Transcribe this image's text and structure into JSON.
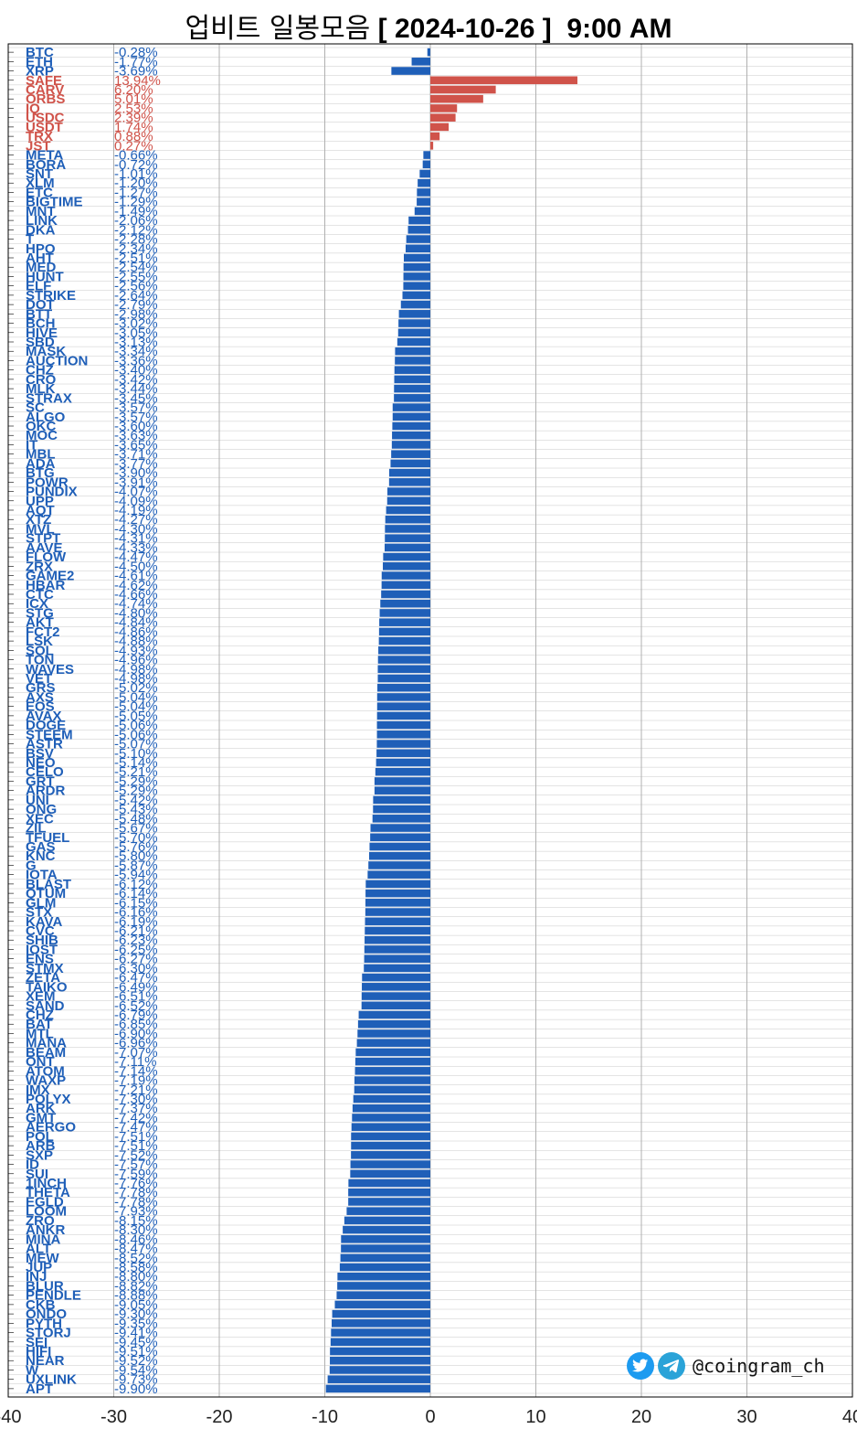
{
  "title": {
    "hangul": "업비트 일봉모음",
    "rest": " [ 2024-10-26 ]  9:00 AM"
  },
  "watermark": {
    "handle": "@coingram_ch",
    "icons": [
      "twitter-bird-icon",
      "telegram-plane-icon"
    ]
  },
  "colors": {
    "negative": "#1f5fb8",
    "positive": "#d0534a",
    "grid": "#c8c8c8"
  },
  "chart_data": {
    "type": "bar",
    "orientation": "horizontal",
    "title": "업비트 일봉모음 [ 2024-10-26 ]  9:00 AM",
    "xlim": [
      -40,
      40
    ],
    "xticks": [
      "-40",
      "-30",
      "-20",
      "-10",
      "0",
      "10",
      "20",
      "30",
      "40"
    ],
    "grid": true,
    "rows": [
      {
        "name": "BTC",
        "change": -0.28,
        "label": "-0.28%"
      },
      {
        "name": "ETH",
        "change": -1.77,
        "label": "-1.77%"
      },
      {
        "name": "XRP",
        "change": -3.69,
        "label": "-3.69%"
      },
      {
        "name": "SAFE",
        "change": 13.94,
        "label": "13.94%"
      },
      {
        "name": "CARV",
        "change": 6.2,
        "label": "6.20%"
      },
      {
        "name": "ORBS",
        "change": 5.01,
        "label": "5.01%"
      },
      {
        "name": "IQ",
        "change": 2.53,
        "label": "2.53%"
      },
      {
        "name": "USDC",
        "change": 2.39,
        "label": "2.39%"
      },
      {
        "name": "USDT",
        "change": 1.74,
        "label": "1.74%"
      },
      {
        "name": "TRX",
        "change": 0.88,
        "label": "0.88%"
      },
      {
        "name": "JST",
        "change": 0.27,
        "label": "0.27%"
      },
      {
        "name": "META",
        "change": -0.66,
        "label": "-0.66%"
      },
      {
        "name": "BORA",
        "change": -0.72,
        "label": "-0.72%"
      },
      {
        "name": "SNT",
        "change": -1.01,
        "label": "-1.01%"
      },
      {
        "name": "XLM",
        "change": -1.2,
        "label": "-1.20%"
      },
      {
        "name": "ETC",
        "change": -1.27,
        "label": "-1.27%"
      },
      {
        "name": "BIGTIME",
        "change": -1.29,
        "label": "-1.29%"
      },
      {
        "name": "MNT",
        "change": -1.49,
        "label": "-1.49%"
      },
      {
        "name": "LINK",
        "change": -2.06,
        "label": "-2.06%"
      },
      {
        "name": "DKA",
        "change": -2.12,
        "label": "-2.12%"
      },
      {
        "name": "T",
        "change": -2.28,
        "label": "-2.28%"
      },
      {
        "name": "HPO",
        "change": -2.34,
        "label": "-2.34%"
      },
      {
        "name": "AHT",
        "change": -2.51,
        "label": "-2.51%"
      },
      {
        "name": "MED",
        "change": -2.54,
        "label": "-2.54%"
      },
      {
        "name": "HUNT",
        "change": -2.55,
        "label": "-2.55%"
      },
      {
        "name": "ELF",
        "change": -2.56,
        "label": "-2.56%"
      },
      {
        "name": "STRIKE",
        "change": -2.64,
        "label": "-2.64%"
      },
      {
        "name": "DOT",
        "change": -2.79,
        "label": "-2.79%"
      },
      {
        "name": "BTT",
        "change": -2.98,
        "label": "-2.98%"
      },
      {
        "name": "BCH",
        "change": -3.02,
        "label": "-3.02%"
      },
      {
        "name": "HIVE",
        "change": -3.05,
        "label": "-3.05%"
      },
      {
        "name": "SBD",
        "change": -3.13,
        "label": "-3.13%"
      },
      {
        "name": "MASK",
        "change": -3.34,
        "label": "-3.34%"
      },
      {
        "name": "AUCTION",
        "change": -3.36,
        "label": "-3.36%"
      },
      {
        "name": "CHZ",
        "change": -3.4,
        "label": "-3.40%"
      },
      {
        "name": "CRO",
        "change": -3.42,
        "label": "-3.42%"
      },
      {
        "name": "MLK",
        "change": -3.44,
        "label": "-3.44%"
      },
      {
        "name": "STRAX",
        "change": -3.45,
        "label": "-3.45%"
      },
      {
        "name": "SC",
        "change": -3.57,
        "label": "-3.57%"
      },
      {
        "name": "ALGO",
        "change": -3.57,
        "label": "-3.57%"
      },
      {
        "name": "OKC",
        "change": -3.6,
        "label": "-3.60%"
      },
      {
        "name": "MOC",
        "change": -3.63,
        "label": "-3.63%"
      },
      {
        "name": "IT",
        "change": -3.65,
        "label": "-3.65%"
      },
      {
        "name": "MBL",
        "change": -3.71,
        "label": "-3.71%"
      },
      {
        "name": "ADA",
        "change": -3.77,
        "label": "-3.77%"
      },
      {
        "name": "BTG",
        "change": -3.9,
        "label": "-3.90%"
      },
      {
        "name": "POWR",
        "change": -3.91,
        "label": "-3.91%"
      },
      {
        "name": "PUNDIX",
        "change": -4.07,
        "label": "-4.07%"
      },
      {
        "name": "UPP",
        "change": -4.09,
        "label": "-4.09%"
      },
      {
        "name": "AQT",
        "change": -4.19,
        "label": "-4.19%"
      },
      {
        "name": "XTZ",
        "change": -4.27,
        "label": "-4.27%"
      },
      {
        "name": "MVL",
        "change": -4.3,
        "label": "-4.30%"
      },
      {
        "name": "STPT",
        "change": -4.31,
        "label": "-4.31%"
      },
      {
        "name": "AAVE",
        "change": -4.33,
        "label": "-4.33%"
      },
      {
        "name": "FLOW",
        "change": -4.47,
        "label": "-4.47%"
      },
      {
        "name": "ZRX",
        "change": -4.5,
        "label": "-4.50%"
      },
      {
        "name": "GAME2",
        "change": -4.61,
        "label": "-4.61%"
      },
      {
        "name": "HBAR",
        "change": -4.62,
        "label": "-4.62%"
      },
      {
        "name": "CTC",
        "change": -4.66,
        "label": "-4.66%"
      },
      {
        "name": "ICX",
        "change": -4.74,
        "label": "-4.74%"
      },
      {
        "name": "STG",
        "change": -4.8,
        "label": "-4.80%"
      },
      {
        "name": "AKT",
        "change": -4.84,
        "label": "-4.84%"
      },
      {
        "name": "FCT2",
        "change": -4.86,
        "label": "-4.86%"
      },
      {
        "name": "LSK",
        "change": -4.88,
        "label": "-4.88%"
      },
      {
        "name": "SOL",
        "change": -4.93,
        "label": "-4.93%"
      },
      {
        "name": "TON",
        "change": -4.96,
        "label": "-4.96%"
      },
      {
        "name": "WAVES",
        "change": -4.98,
        "label": "-4.98%"
      },
      {
        "name": "VET",
        "change": -4.98,
        "label": "-4.98%"
      },
      {
        "name": "GRS",
        "change": -5.02,
        "label": "-5.02%"
      },
      {
        "name": "AXS",
        "change": -5.04,
        "label": "-5.04%"
      },
      {
        "name": "EOS",
        "change": -5.04,
        "label": "-5.04%"
      },
      {
        "name": "AVAX",
        "change": -5.05,
        "label": "-5.05%"
      },
      {
        "name": "DOGE",
        "change": -5.06,
        "label": "-5.06%"
      },
      {
        "name": "STEEM",
        "change": -5.06,
        "label": "-5.06%"
      },
      {
        "name": "ASTR",
        "change": -5.07,
        "label": "-5.07%"
      },
      {
        "name": "BSV",
        "change": -5.1,
        "label": "-5.10%"
      },
      {
        "name": "NEO",
        "change": -5.14,
        "label": "-5.14%"
      },
      {
        "name": "CELO",
        "change": -5.21,
        "label": "-5.21%"
      },
      {
        "name": "GRT",
        "change": -5.29,
        "label": "-5.29%"
      },
      {
        "name": "ARDR",
        "change": -5.29,
        "label": "-5.29%"
      },
      {
        "name": "UNI",
        "change": -5.42,
        "label": "-5.42%"
      },
      {
        "name": "ONG",
        "change": -5.43,
        "label": "-5.43%"
      },
      {
        "name": "XEC",
        "change": -5.48,
        "label": "-5.48%"
      },
      {
        "name": "ZIL",
        "change": -5.67,
        "label": "-5.67%"
      },
      {
        "name": "TFUEL",
        "change": -5.7,
        "label": "-5.70%"
      },
      {
        "name": "GAS",
        "change": -5.76,
        "label": "-5.76%"
      },
      {
        "name": "KNC",
        "change": -5.8,
        "label": "-5.80%"
      },
      {
        "name": "G",
        "change": -5.87,
        "label": "-5.87%"
      },
      {
        "name": "IOTA",
        "change": -5.94,
        "label": "-5.94%"
      },
      {
        "name": "BLAST",
        "change": -6.12,
        "label": "-6.12%"
      },
      {
        "name": "QTUM",
        "change": -6.14,
        "label": "-6.14%"
      },
      {
        "name": "GLM",
        "change": -6.15,
        "label": "-6.15%"
      },
      {
        "name": "STX",
        "change": -6.16,
        "label": "-6.16%"
      },
      {
        "name": "KAVA",
        "change": -6.19,
        "label": "-6.19%"
      },
      {
        "name": "CVC",
        "change": -6.21,
        "label": "-6.21%"
      },
      {
        "name": "SHIB",
        "change": -6.23,
        "label": "-6.23%"
      },
      {
        "name": "IOST",
        "change": -6.25,
        "label": "-6.25%"
      },
      {
        "name": "ENS",
        "change": -6.27,
        "label": "-6.27%"
      },
      {
        "name": "STMX",
        "change": -6.3,
        "label": "-6.30%"
      },
      {
        "name": "ZETA",
        "change": -6.47,
        "label": "-6.47%"
      },
      {
        "name": "TAIKO",
        "change": -6.49,
        "label": "-6.49%"
      },
      {
        "name": "XEM",
        "change": -6.51,
        "label": "-6.51%"
      },
      {
        "name": "SAND",
        "change": -6.52,
        "label": "-6.52%"
      },
      {
        "name": "CHZ",
        "change": -6.79,
        "label": "-6.79%"
      },
      {
        "name": "BAT",
        "change": -6.85,
        "label": "-6.85%"
      },
      {
        "name": "MTL",
        "change": -6.9,
        "label": "-6.90%"
      },
      {
        "name": "MANA",
        "change": -6.96,
        "label": "-6.96%"
      },
      {
        "name": "BEAM",
        "change": -7.07,
        "label": "-7.07%"
      },
      {
        "name": "ONT",
        "change": -7.11,
        "label": "-7.11%"
      },
      {
        "name": "ATOM",
        "change": -7.14,
        "label": "-7.14%"
      },
      {
        "name": "WAXP",
        "change": -7.19,
        "label": "-7.19%"
      },
      {
        "name": "IMX",
        "change": -7.21,
        "label": "-7.21%"
      },
      {
        "name": "POLYX",
        "change": -7.3,
        "label": "-7.30%"
      },
      {
        "name": "ARK",
        "change": -7.37,
        "label": "-7.37%"
      },
      {
        "name": "GMT",
        "change": -7.42,
        "label": "-7.42%"
      },
      {
        "name": "AERGO",
        "change": -7.47,
        "label": "-7.47%"
      },
      {
        "name": "POL",
        "change": -7.51,
        "label": "-7.51%"
      },
      {
        "name": "ARB",
        "change": -7.51,
        "label": "-7.51%"
      },
      {
        "name": "SXP",
        "change": -7.52,
        "label": "-7.52%"
      },
      {
        "name": "ID",
        "change": -7.57,
        "label": "-7.57%"
      },
      {
        "name": "SUI",
        "change": -7.59,
        "label": "-7.59%"
      },
      {
        "name": "1INCH",
        "change": -7.76,
        "label": "-7.76%"
      },
      {
        "name": "THETA",
        "change": -7.78,
        "label": "-7.78%"
      },
      {
        "name": "EGLD",
        "change": -7.78,
        "label": "-7.78%"
      },
      {
        "name": "LOOM",
        "change": -7.93,
        "label": "-7.93%"
      },
      {
        "name": "ZRO",
        "change": -8.15,
        "label": "-8.15%"
      },
      {
        "name": "ANKR",
        "change": -8.3,
        "label": "-8.30%"
      },
      {
        "name": "MINA",
        "change": -8.46,
        "label": "-8.46%"
      },
      {
        "name": "ALT",
        "change": -8.47,
        "label": "-8.47%"
      },
      {
        "name": "MEW",
        "change": -8.52,
        "label": "-8.52%"
      },
      {
        "name": "JUP",
        "change": -8.58,
        "label": "-8.58%"
      },
      {
        "name": "INJ",
        "change": -8.8,
        "label": "-8.80%"
      },
      {
        "name": "BLUR",
        "change": -8.82,
        "label": "-8.82%"
      },
      {
        "name": "PENDLE",
        "change": -8.88,
        "label": "-8.88%"
      },
      {
        "name": "CKB",
        "change": -9.05,
        "label": "-9.05%"
      },
      {
        "name": "ONDO",
        "change": -9.3,
        "label": "-9.30%"
      },
      {
        "name": "PYTH",
        "change": -9.35,
        "label": "-9.35%"
      },
      {
        "name": "STORJ",
        "change": -9.41,
        "label": "-9.41%"
      },
      {
        "name": "SEI",
        "change": -9.45,
        "label": "-9.45%"
      },
      {
        "name": "HIFI",
        "change": -9.51,
        "label": "-9.51%"
      },
      {
        "name": "NEAR",
        "change": -9.52,
        "label": "-9.52%"
      },
      {
        "name": "W",
        "change": -9.54,
        "label": "-9.54%"
      },
      {
        "name": "UXLINK",
        "change": -9.73,
        "label": "-9.73%"
      },
      {
        "name": "APT",
        "change": -9.9,
        "label": "-9.90%"
      }
    ]
  }
}
